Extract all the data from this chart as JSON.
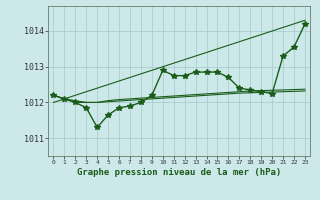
{
  "title": "Graphe pression niveau de la mer (hPa)",
  "background_color": "#cce8e8",
  "grid_color": "#aacece",
  "line_color": "#1a5c1a",
  "marker_color": "#1a5c1a",
  "xlim": [
    -0.5,
    23.5
  ],
  "ylim": [
    1010.5,
    1014.7
  ],
  "yticks": [
    1011,
    1012,
    1013,
    1014
  ],
  "xtick_labels": [
    "0",
    "1",
    "2",
    "3",
    "4",
    "5",
    "6",
    "7",
    "8",
    "9",
    "10",
    "11",
    "12",
    "13",
    "14",
    "15",
    "16",
    "17",
    "18",
    "19",
    "20",
    "21",
    "22",
    "23"
  ],
  "series": [
    {
      "x": [
        0,
        1,
        2,
        3,
        4,
        5,
        6,
        7,
        8,
        9,
        10,
        11,
        12,
        13,
        14,
        15,
        16,
        17,
        18,
        19,
        20,
        21,
        22,
        23
      ],
      "y": [
        1012.2,
        1012.1,
        1012.0,
        1011.85,
        1011.3,
        1011.65,
        1011.85,
        1011.9,
        1012.0,
        1012.2,
        1012.9,
        1012.75,
        1012.75,
        1012.85,
        1012.85,
        1012.85,
        1012.7,
        1012.4,
        1012.35,
        1012.3,
        1012.25,
        1013.3,
        1013.55,
        1014.2
      ],
      "with_markers": true,
      "linewidth": 1.0,
      "markersize": 4
    },
    {
      "x": [
        0,
        23
      ],
      "y": [
        1012.0,
        1014.3
      ],
      "with_markers": false,
      "linewidth": 0.8,
      "markersize": 0
    },
    {
      "x": [
        0,
        1,
        2,
        3,
        4,
        5,
        6,
        7,
        8,
        9,
        10,
        11,
        12,
        13,
        14,
        15,
        16,
        17,
        18,
        19,
        20,
        21,
        22,
        23
      ],
      "y": [
        1012.2,
        1012.1,
        1012.05,
        1012.0,
        1012.0,
        1012.05,
        1012.08,
        1012.1,
        1012.12,
        1012.14,
        1012.16,
        1012.18,
        1012.2,
        1012.22,
        1012.24,
        1012.26,
        1012.28,
        1012.3,
        1012.32,
        1012.33,
        1012.34,
        1012.35,
        1012.36,
        1012.37
      ],
      "with_markers": false,
      "linewidth": 0.8,
      "markersize": 0
    },
    {
      "x": [
        0,
        1,
        2,
        3,
        4,
        5,
        6,
        7,
        8,
        9,
        10,
        11,
        12,
        13,
        14,
        15,
        16,
        17,
        18,
        19,
        20,
        21,
        22,
        23
      ],
      "y": [
        1012.2,
        1012.1,
        1012.0,
        1012.0,
        1012.0,
        1012.02,
        1012.04,
        1012.06,
        1012.08,
        1012.1,
        1012.12,
        1012.14,
        1012.16,
        1012.18,
        1012.2,
        1012.22,
        1012.24,
        1012.26,
        1012.27,
        1012.28,
        1012.29,
        1012.3,
        1012.31,
        1012.32
      ],
      "with_markers": false,
      "linewidth": 0.8,
      "markersize": 0
    }
  ]
}
